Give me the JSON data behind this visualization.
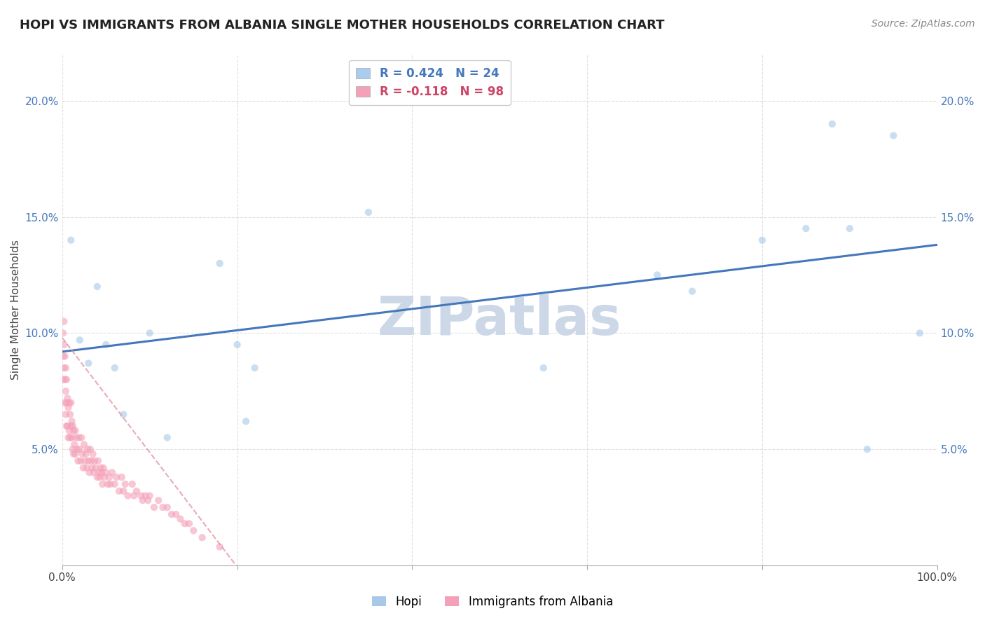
{
  "title": "HOPI VS IMMIGRANTS FROM ALBANIA SINGLE MOTHER HOUSEHOLDS CORRELATION CHART",
  "source_text": "Source: ZipAtlas.com",
  "ylabel": "Single Mother Households",
  "xlabel": "",
  "background_color": "#ffffff",
  "plot_bg_color": "#ffffff",
  "grid_color": "#e0e0e0",
  "hopi_R": 0.424,
  "hopi_N": 24,
  "albania_R": -0.118,
  "albania_N": 98,
  "hopi_color": "#a8c8e8",
  "albania_color": "#f4a0b8",
  "hopi_line_color": "#4477bb",
  "albania_line_color": "#e08898",
  "legend_hopi_label": "Hopi",
  "legend_albania_label": "Immigrants from Albania",
  "hopi_scatter_x": [
    0.01,
    0.02,
    0.03,
    0.04,
    0.05,
    0.06,
    0.07,
    0.1,
    0.12,
    0.18,
    0.2,
    0.21,
    0.22,
    0.35,
    0.55,
    0.68,
    0.72,
    0.8,
    0.85,
    0.88,
    0.9,
    0.92,
    0.95,
    0.98
  ],
  "hopi_scatter_y": [
    0.14,
    0.097,
    0.087,
    0.12,
    0.095,
    0.085,
    0.065,
    0.1,
    0.055,
    0.13,
    0.095,
    0.062,
    0.085,
    0.152,
    0.085,
    0.125,
    0.118,
    0.14,
    0.145,
    0.19,
    0.145,
    0.05,
    0.185,
    0.1
  ],
  "albania_scatter_x": [
    0.001,
    0.001,
    0.001,
    0.002,
    0.002,
    0.002,
    0.003,
    0.003,
    0.003,
    0.004,
    0.004,
    0.004,
    0.005,
    0.005,
    0.005,
    0.006,
    0.006,
    0.007,
    0.007,
    0.008,
    0.008,
    0.009,
    0.009,
    0.01,
    0.01,
    0.011,
    0.011,
    0.012,
    0.012,
    0.013,
    0.013,
    0.014,
    0.015,
    0.015,
    0.016,
    0.017,
    0.018,
    0.019,
    0.02,
    0.021,
    0.022,
    0.023,
    0.024,
    0.025,
    0.026,
    0.027,
    0.028,
    0.029,
    0.03,
    0.031,
    0.032,
    0.033,
    0.034,
    0.035,
    0.036,
    0.037,
    0.038,
    0.04,
    0.041,
    0.042,
    0.043,
    0.044,
    0.045,
    0.046,
    0.047,
    0.048,
    0.05,
    0.052,
    0.054,
    0.055,
    0.057,
    0.06,
    0.062,
    0.065,
    0.068,
    0.07,
    0.072,
    0.075,
    0.08,
    0.082,
    0.085,
    0.09,
    0.092,
    0.095,
    0.098,
    0.1,
    0.105,
    0.11,
    0.115,
    0.12,
    0.125,
    0.13,
    0.135,
    0.14,
    0.145,
    0.15,
    0.16,
    0.18
  ],
  "albania_scatter_y": [
    0.08,
    0.09,
    0.1,
    0.085,
    0.095,
    0.105,
    0.07,
    0.08,
    0.09,
    0.065,
    0.075,
    0.085,
    0.06,
    0.07,
    0.08,
    0.06,
    0.072,
    0.055,
    0.068,
    0.058,
    0.07,
    0.055,
    0.065,
    0.06,
    0.07,
    0.055,
    0.062,
    0.05,
    0.06,
    0.048,
    0.058,
    0.052,
    0.048,
    0.058,
    0.055,
    0.05,
    0.045,
    0.055,
    0.05,
    0.045,
    0.055,
    0.048,
    0.042,
    0.052,
    0.045,
    0.048,
    0.042,
    0.05,
    0.045,
    0.04,
    0.05,
    0.045,
    0.042,
    0.048,
    0.04,
    0.045,
    0.042,
    0.038,
    0.045,
    0.04,
    0.038,
    0.042,
    0.04,
    0.035,
    0.042,
    0.038,
    0.04,
    0.035,
    0.038,
    0.035,
    0.04,
    0.035,
    0.038,
    0.032,
    0.038,
    0.032,
    0.035,
    0.03,
    0.035,
    0.03,
    0.032,
    0.03,
    0.028,
    0.03,
    0.028,
    0.03,
    0.025,
    0.028,
    0.025,
    0.025,
    0.022,
    0.022,
    0.02,
    0.018,
    0.018,
    0.015,
    0.012,
    0.008
  ],
  "xlim": [
    0,
    1.0
  ],
  "ylim": [
    0,
    0.22
  ],
  "xticks": [
    0.0,
    0.2,
    0.4,
    0.6,
    0.8,
    1.0
  ],
  "xtick_labels_bottom": [
    "0.0%",
    "",
    "",
    "",
    "",
    "100.0%"
  ],
  "yticks": [
    0.0,
    0.05,
    0.1,
    0.15,
    0.2
  ],
  "ytick_labels_left": [
    "",
    "5.0%",
    "10.0%",
    "15.0%",
    "20.0%"
  ],
  "ytick_labels_right": [
    "",
    "5.0%",
    "10.0%",
    "15.0%",
    "20.0%"
  ],
  "watermark_text": "ZIPatlas",
  "watermark_color": "#ccd8e8",
  "watermark_fontsize": 55,
  "title_fontsize": 13,
  "axis_label_fontsize": 11,
  "tick_fontsize": 11,
  "legend_fontsize": 12,
  "source_fontsize": 10,
  "marker_size": 55,
  "marker_alpha": 0.6,
  "legend_box_color_hopi": "#aaccee",
  "legend_box_color_albania": "#f4a0b8",
  "legend_text_color_hopi": "#4477bb",
  "legend_text_color_albania": "#cc4466"
}
